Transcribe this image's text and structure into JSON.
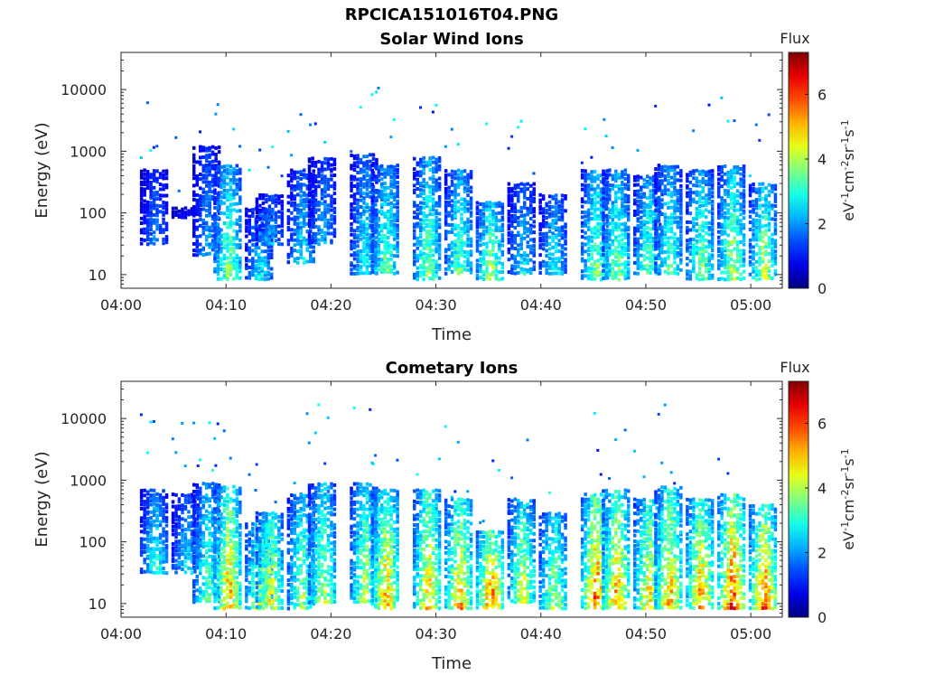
{
  "figure": {
    "title": "RPCICA151016T04.PNG"
  },
  "colorbar": {
    "label": "Flux",
    "unit_text": "eV",
    "colormap": "jet",
    "range": [
      0,
      7.3
    ],
    "ticks": [
      "0",
      "2",
      "4",
      "6"
    ]
  },
  "chart_data": [
    {
      "type": "heatmap",
      "title": "Solar Wind Ions",
      "xlabel": "Time",
      "ylabel": "Energy (eV)",
      "xlim": [
        "04:00",
        "05:03"
      ],
      "ylim": [
        6,
        40000
      ],
      "y_scale": "log",
      "x_ticks": [
        "04:00",
        "04:10",
        "04:20",
        "04:30",
        "04:40",
        "04:50",
        "05:00"
      ],
      "y_ticks": [
        "10",
        "100",
        "1000",
        "10000"
      ],
      "grid": false,
      "bursts": [
        {
          "t": "04:03",
          "elo": 30,
          "ehi": 500,
          "peak": 2.2
        },
        {
          "t": "04:06",
          "elo": 80,
          "ehi": 120,
          "peak": 1.2
        },
        {
          "t": "04:08",
          "elo": 20,
          "ehi": 1200,
          "peak": 2.5
        },
        {
          "t": "04:10",
          "elo": 8,
          "ehi": 600,
          "peak": 4.3
        },
        {
          "t": "04:13",
          "elo": 8,
          "ehi": 120,
          "peak": 3.0
        },
        {
          "t": "04:14",
          "elo": 30,
          "ehi": 200,
          "peak": 2.6
        },
        {
          "t": "04:17",
          "elo": 15,
          "ehi": 500,
          "peak": 3.0
        },
        {
          "t": "04:19",
          "elo": 30,
          "ehi": 800,
          "peak": 2.5
        },
        {
          "t": "04:23",
          "elo": 10,
          "ehi": 900,
          "peak": 3.2
        },
        {
          "t": "04:25",
          "elo": 10,
          "ehi": 600,
          "peak": 4.0
        },
        {
          "t": "04:29",
          "elo": 8,
          "ehi": 800,
          "peak": 4.2
        },
        {
          "t": "04:32",
          "elo": 10,
          "ehi": 500,
          "peak": 4.0
        },
        {
          "t": "04:35",
          "elo": 8,
          "ehi": 150,
          "peak": 4.6
        },
        {
          "t": "04:38",
          "elo": 10,
          "ehi": 300,
          "peak": 3.0
        },
        {
          "t": "04:41",
          "elo": 10,
          "ehi": 200,
          "peak": 3.2
        },
        {
          "t": "04:45",
          "elo": 8,
          "ehi": 500,
          "peak": 4.3
        },
        {
          "t": "04:47",
          "elo": 8,
          "ehi": 500,
          "peak": 4.2
        },
        {
          "t": "04:50",
          "elo": 10,
          "ehi": 400,
          "peak": 4.0
        },
        {
          "t": "04:52",
          "elo": 10,
          "ehi": 600,
          "peak": 3.8
        },
        {
          "t": "04:55",
          "elo": 8,
          "ehi": 500,
          "peak": 4.2
        },
        {
          "t": "04:58",
          "elo": 8,
          "ehi": 600,
          "peak": 4.6
        },
        {
          "t": "05:01",
          "elo": 8,
          "ehi": 300,
          "peak": 4.6
        }
      ]
    },
    {
      "type": "heatmap",
      "title": "Cometary Ions",
      "xlabel": "Time",
      "ylabel": "Energy (eV)",
      "xlim": [
        "04:00",
        "05:03"
      ],
      "ylim": [
        6,
        40000
      ],
      "y_scale": "log",
      "x_ticks": [
        "04:00",
        "04:10",
        "04:20",
        "04:30",
        "04:40",
        "04:50",
        "05:00"
      ],
      "y_ticks": [
        "10",
        "100",
        "1000",
        "10000"
      ],
      "grid": false,
      "bursts": [
        {
          "t": "04:03",
          "elo": 30,
          "ehi": 700,
          "peak": 3.5
        },
        {
          "t": "04:06",
          "elo": 30,
          "ehi": 600,
          "peak": 3.0
        },
        {
          "t": "04:08",
          "elo": 10,
          "ehi": 900,
          "peak": 4.0
        },
        {
          "t": "04:10",
          "elo": 8,
          "ehi": 800,
          "peak": 5.8
        },
        {
          "t": "04:13",
          "elo": 8,
          "ehi": 200,
          "peak": 5.0
        },
        {
          "t": "04:14",
          "elo": 8,
          "ehi": 300,
          "peak": 5.2
        },
        {
          "t": "04:17",
          "elo": 8,
          "ehi": 600,
          "peak": 4.5
        },
        {
          "t": "04:19",
          "elo": 10,
          "ehi": 900,
          "peak": 4.6
        },
        {
          "t": "04:23",
          "elo": 10,
          "ehi": 900,
          "peak": 4.8
        },
        {
          "t": "04:25",
          "elo": 8,
          "ehi": 700,
          "peak": 5.8
        },
        {
          "t": "04:29",
          "elo": 8,
          "ehi": 700,
          "peak": 5.8
        },
        {
          "t": "04:32",
          "elo": 8,
          "ehi": 500,
          "peak": 5.8
        },
        {
          "t": "04:35",
          "elo": 8,
          "ehi": 150,
          "peak": 6.5
        },
        {
          "t": "04:38",
          "elo": 10,
          "ehi": 500,
          "peak": 5.0
        },
        {
          "t": "04:41",
          "elo": 8,
          "ehi": 300,
          "peak": 4.8
        },
        {
          "t": "04:45",
          "elo": 8,
          "ehi": 600,
          "peak": 6.5
        },
        {
          "t": "04:47",
          "elo": 8,
          "ehi": 700,
          "peak": 6.0
        },
        {
          "t": "04:50",
          "elo": 8,
          "ehi": 500,
          "peak": 5.5
        },
        {
          "t": "04:52",
          "elo": 8,
          "ehi": 800,
          "peak": 5.8
        },
        {
          "t": "04:55",
          "elo": 8,
          "ehi": 500,
          "peak": 6.0
        },
        {
          "t": "04:58",
          "elo": 8,
          "ehi": 600,
          "peak": 6.8
        },
        {
          "t": "05:01",
          "elo": 8,
          "ehi": 400,
          "peak": 6.5
        }
      ]
    }
  ]
}
